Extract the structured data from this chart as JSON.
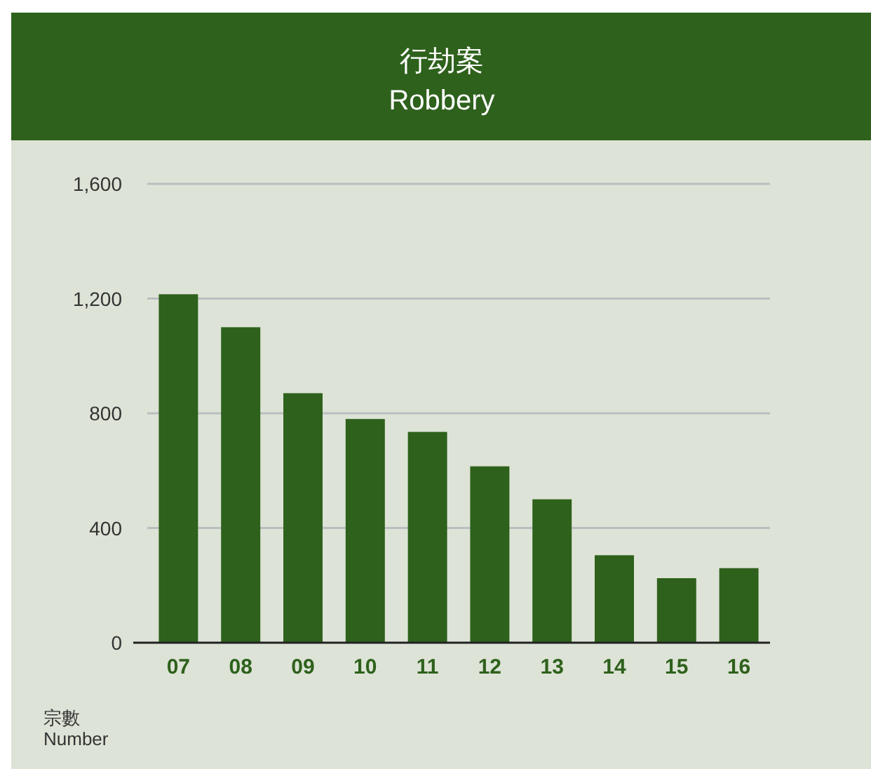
{
  "chart_data": {
    "type": "bar",
    "title": "行劫案",
    "subtitle": "Robbery",
    "ylabel": "宗數\nNumber",
    "categories": [
      "07",
      "08",
      "09",
      "10",
      "11",
      "12",
      "13",
      "14",
      "15",
      "16"
    ],
    "values": [
      1215,
      1100,
      870,
      780,
      735,
      615,
      500,
      305,
      225,
      260
    ],
    "color": "#2e611c",
    "ylim": [
      0,
      1600
    ],
    "yticks": [
      {
        "value": 0,
        "label": "0"
      },
      {
        "value": 400,
        "label": "400"
      },
      {
        "value": 800,
        "label": "800"
      },
      {
        "value": 1200,
        "label": "1,200"
      },
      {
        "value": 1600,
        "label": "1,600"
      }
    ],
    "grid": "y"
  }
}
